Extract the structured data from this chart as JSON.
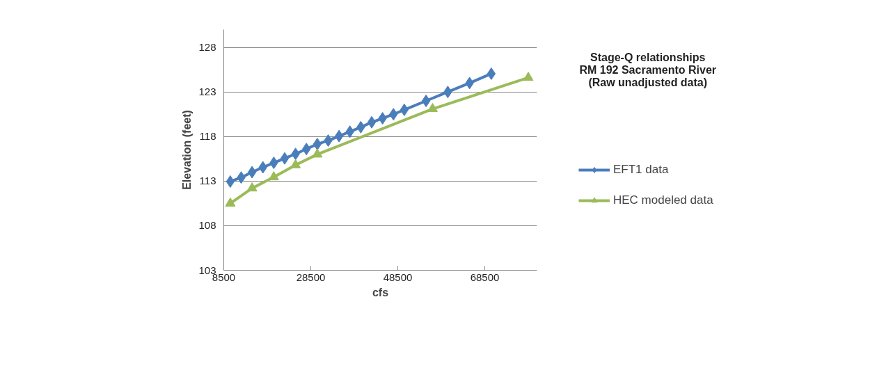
{
  "chart_data": {
    "type": "line",
    "title": "Stage-Q relationships\nRM 192 Sacramento River\n(Raw unadjusted data)",
    "xlabel": "cfs",
    "ylabel": "Elevation (feet)",
    "xlim": [
      8500,
      80500
    ],
    "xticks": [
      8500,
      28500,
      48500,
      68500
    ],
    "ylim": [
      103,
      130
    ],
    "yticks": [
      103,
      108,
      113,
      118,
      123,
      128
    ],
    "grid": "y",
    "legend": "right",
    "series": [
      {
        "name": "EFT1 data",
        "color": "#4a7ebb",
        "marker": "diamond",
        "x": [
          10000,
          12500,
          15000,
          17500,
          20000,
          22500,
          25000,
          27500,
          30000,
          32500,
          35000,
          37500,
          40000,
          42500,
          45000,
          47500,
          50000,
          55000,
          60000,
          65000,
          70000
        ],
        "values": [
          112.95,
          113.4,
          114.0,
          114.55,
          115.05,
          115.55,
          116.05,
          116.6,
          117.15,
          117.55,
          118.05,
          118.55,
          119.05,
          119.6,
          120.05,
          120.5,
          121.0,
          122.0,
          123.0,
          124.0,
          125.05
        ]
      },
      {
        "name": "HEC modeled data",
        "color": "#9bbb59",
        "marker": "triangle",
        "x": [
          10000,
          15000,
          20000,
          25000,
          30000,
          56500,
          78500
        ],
        "values": [
          110.5,
          112.2,
          113.45,
          114.8,
          116.0,
          121.1,
          124.6
        ]
      }
    ]
  }
}
